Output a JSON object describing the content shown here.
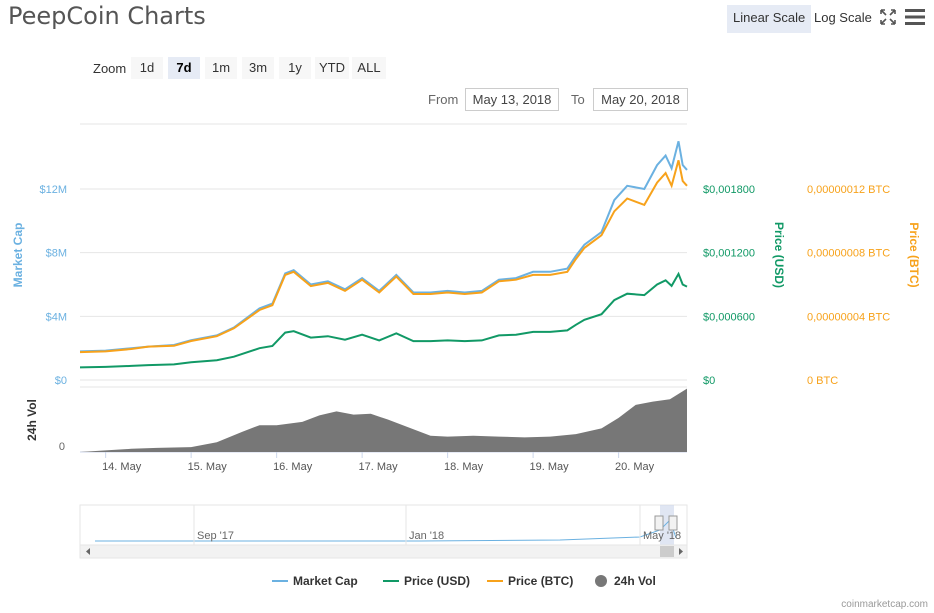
{
  "title": "PeepCoin Charts",
  "scale_buttons": {
    "linear": "Linear Scale",
    "log": "Log Scale"
  },
  "zoom": {
    "label": "Zoom",
    "buttons": [
      "1d",
      "7d",
      "1m",
      "3m",
      "1y",
      "YTD",
      "ALL"
    ],
    "selected": "7d"
  },
  "range": {
    "from_label": "From",
    "from_value": "May 13, 2018",
    "to_label": "To",
    "to_value": "May 20, 2018"
  },
  "colors": {
    "market_cap": "#6bb1e1",
    "price_usd": "#119966",
    "price_btc": "#f7a21b",
    "volume": "#777777"
  },
  "chart_data": {
    "type": "line",
    "title": "PeepCoin Charts",
    "x_ticks": [
      "14. May",
      "15. May",
      "16. May",
      "17. May",
      "18. May",
      "19. May",
      "20. May"
    ],
    "axes": {
      "market_cap": {
        "label": "Market Cap",
        "ticks": [
          "$0",
          "$4M",
          "$8M",
          "$12M"
        ],
        "range": [
          0,
          12000000
        ]
      },
      "price_usd": {
        "label": "Price (USD)",
        "ticks": [
          "$0",
          "$0,000600",
          "$0,001200",
          "$0,001800"
        ],
        "range": [
          0,
          0.0018
        ]
      },
      "price_btc": {
        "label": "Price (BTC)",
        "ticks": [
          "0 BTC",
          "0,00000004 BTC",
          "0,00000008 BTC",
          "0,00000012 BTC"
        ],
        "range": [
          0,
          1.2e-07
        ]
      },
      "volume": {
        "label": "24h Vol",
        "ticks": [
          "0"
        ]
      }
    },
    "series": [
      {
        "name": "Market Cap",
        "x": [
          13.7,
          14.0,
          14.3,
          14.5,
          14.8,
          15.0,
          15.3,
          15.5,
          15.8,
          15.95,
          16.1,
          16.2,
          16.4,
          16.6,
          16.8,
          17.0,
          17.2,
          17.4,
          17.6,
          17.8,
          18.0,
          18.2,
          18.4,
          18.6,
          18.8,
          19.0,
          19.2,
          19.4,
          19.5,
          19.6,
          19.8,
          19.95,
          20.1,
          20.3,
          20.45,
          20.55,
          20.62,
          20.7,
          20.75,
          20.8
        ],
        "values": [
          1.8,
          1.85,
          2.0,
          2.1,
          2.2,
          2.5,
          2.8,
          3.3,
          4.5,
          4.8,
          6.7,
          6.9,
          6.0,
          6.2,
          5.7,
          6.4,
          5.6,
          6.6,
          5.5,
          5.5,
          5.6,
          5.5,
          5.6,
          6.3,
          6.4,
          6.8,
          6.8,
          7.0,
          7.8,
          8.5,
          9.3,
          11.3,
          12.2,
          12.0,
          13.5,
          14.1,
          13.3,
          15.0,
          13.5,
          13.2
        ]
      },
      {
        "name": "Price (USD)",
        "x": [
          13.7,
          14.0,
          14.3,
          14.5,
          14.8,
          15.0,
          15.3,
          15.5,
          15.8,
          15.95,
          16.1,
          16.2,
          16.4,
          16.6,
          16.8,
          17.0,
          17.2,
          17.4,
          17.6,
          17.8,
          18.0,
          18.2,
          18.4,
          18.6,
          18.8,
          19.0,
          19.2,
          19.4,
          19.5,
          19.6,
          19.8,
          19.95,
          20.1,
          20.3,
          20.45,
          20.55,
          20.62,
          20.7,
          20.75,
          20.8
        ],
        "values": [
          0.000119,
          0.000123,
          0.000133,
          0.00014,
          0.000147,
          0.000167,
          0.000187,
          0.00022,
          0.0003,
          0.00032,
          0.000447,
          0.00046,
          0.0004,
          0.000413,
          0.00038,
          0.000427,
          0.000373,
          0.00044,
          0.000367,
          0.000367,
          0.000373,
          0.000367,
          0.000373,
          0.00042,
          0.000427,
          0.000453,
          0.000453,
          0.000467,
          0.00052,
          0.000567,
          0.00062,
          0.000753,
          0.000813,
          0.0008,
          0.0009,
          0.00094,
          0.000887,
          0.001,
          0.0009,
          0.00088
        ]
      },
      {
        "name": "Price (BTC)",
        "x": [
          13.7,
          14.0,
          14.3,
          14.5,
          14.8,
          15.0,
          15.3,
          15.5,
          15.8,
          15.95,
          16.1,
          16.2,
          16.4,
          16.6,
          16.8,
          17.0,
          17.2,
          17.4,
          17.6,
          17.8,
          18.0,
          18.2,
          18.4,
          18.6,
          18.8,
          19.0,
          19.2,
          19.4,
          19.5,
          19.6,
          19.8,
          19.95,
          20.1,
          20.3,
          20.45,
          20.55,
          20.62,
          20.7,
          20.75,
          20.8
        ],
        "values": [
          1.75e-08,
          1.8e-08,
          1.95e-08,
          2.1e-08,
          2.15e-08,
          2.45e-08,
          2.75e-08,
          3.25e-08,
          4.4e-08,
          4.7e-08,
          6.6e-08,
          6.8e-08,
          5.9e-08,
          6.1e-08,
          5.6e-08,
          6.3e-08,
          5.5e-08,
          6.5e-08,
          5.4e-08,
          5.4e-08,
          5.5e-08,
          5.4e-08,
          5.5e-08,
          6.2e-08,
          6.3e-08,
          6.6e-08,
          6.6e-08,
          6.8e-08,
          7.6e-08,
          8.3e-08,
          9.1e-08,
          1.06e-07,
          1.14e-07,
          1.1e-07,
          1.24e-07,
          1.3e-07,
          1.22e-07,
          1.38e-07,
          1.25e-07,
          1.22e-07
        ]
      },
      {
        "name": "24h Vol",
        "x": [
          13.7,
          14.0,
          14.3,
          14.6,
          15.0,
          15.3,
          15.6,
          15.8,
          16.0,
          16.3,
          16.5,
          16.7,
          16.9,
          17.1,
          17.3,
          17.6,
          17.8,
          18.0,
          18.3,
          18.6,
          18.9,
          19.2,
          19.5,
          19.8,
          20.0,
          20.2,
          20.4,
          20.6,
          20.8
        ],
        "values": [
          0,
          2,
          4,
          5,
          6,
          12,
          25,
          33,
          33,
          37,
          45,
          50,
          46,
          47,
          40,
          28,
          20,
          19,
          20,
          19,
          18,
          19,
          22,
          29,
          42,
          58,
          62,
          65,
          78
        ]
      }
    ],
    "navigator": {
      "ticks": [
        "Sep '17",
        "Jan '18",
        "May '18"
      ]
    },
    "legend": {
      "position": "bottom",
      "items": [
        "Market Cap",
        "Price (USD)",
        "Price (BTC)",
        "24h Vol"
      ]
    }
  },
  "credit": "coinmarketcap.com"
}
